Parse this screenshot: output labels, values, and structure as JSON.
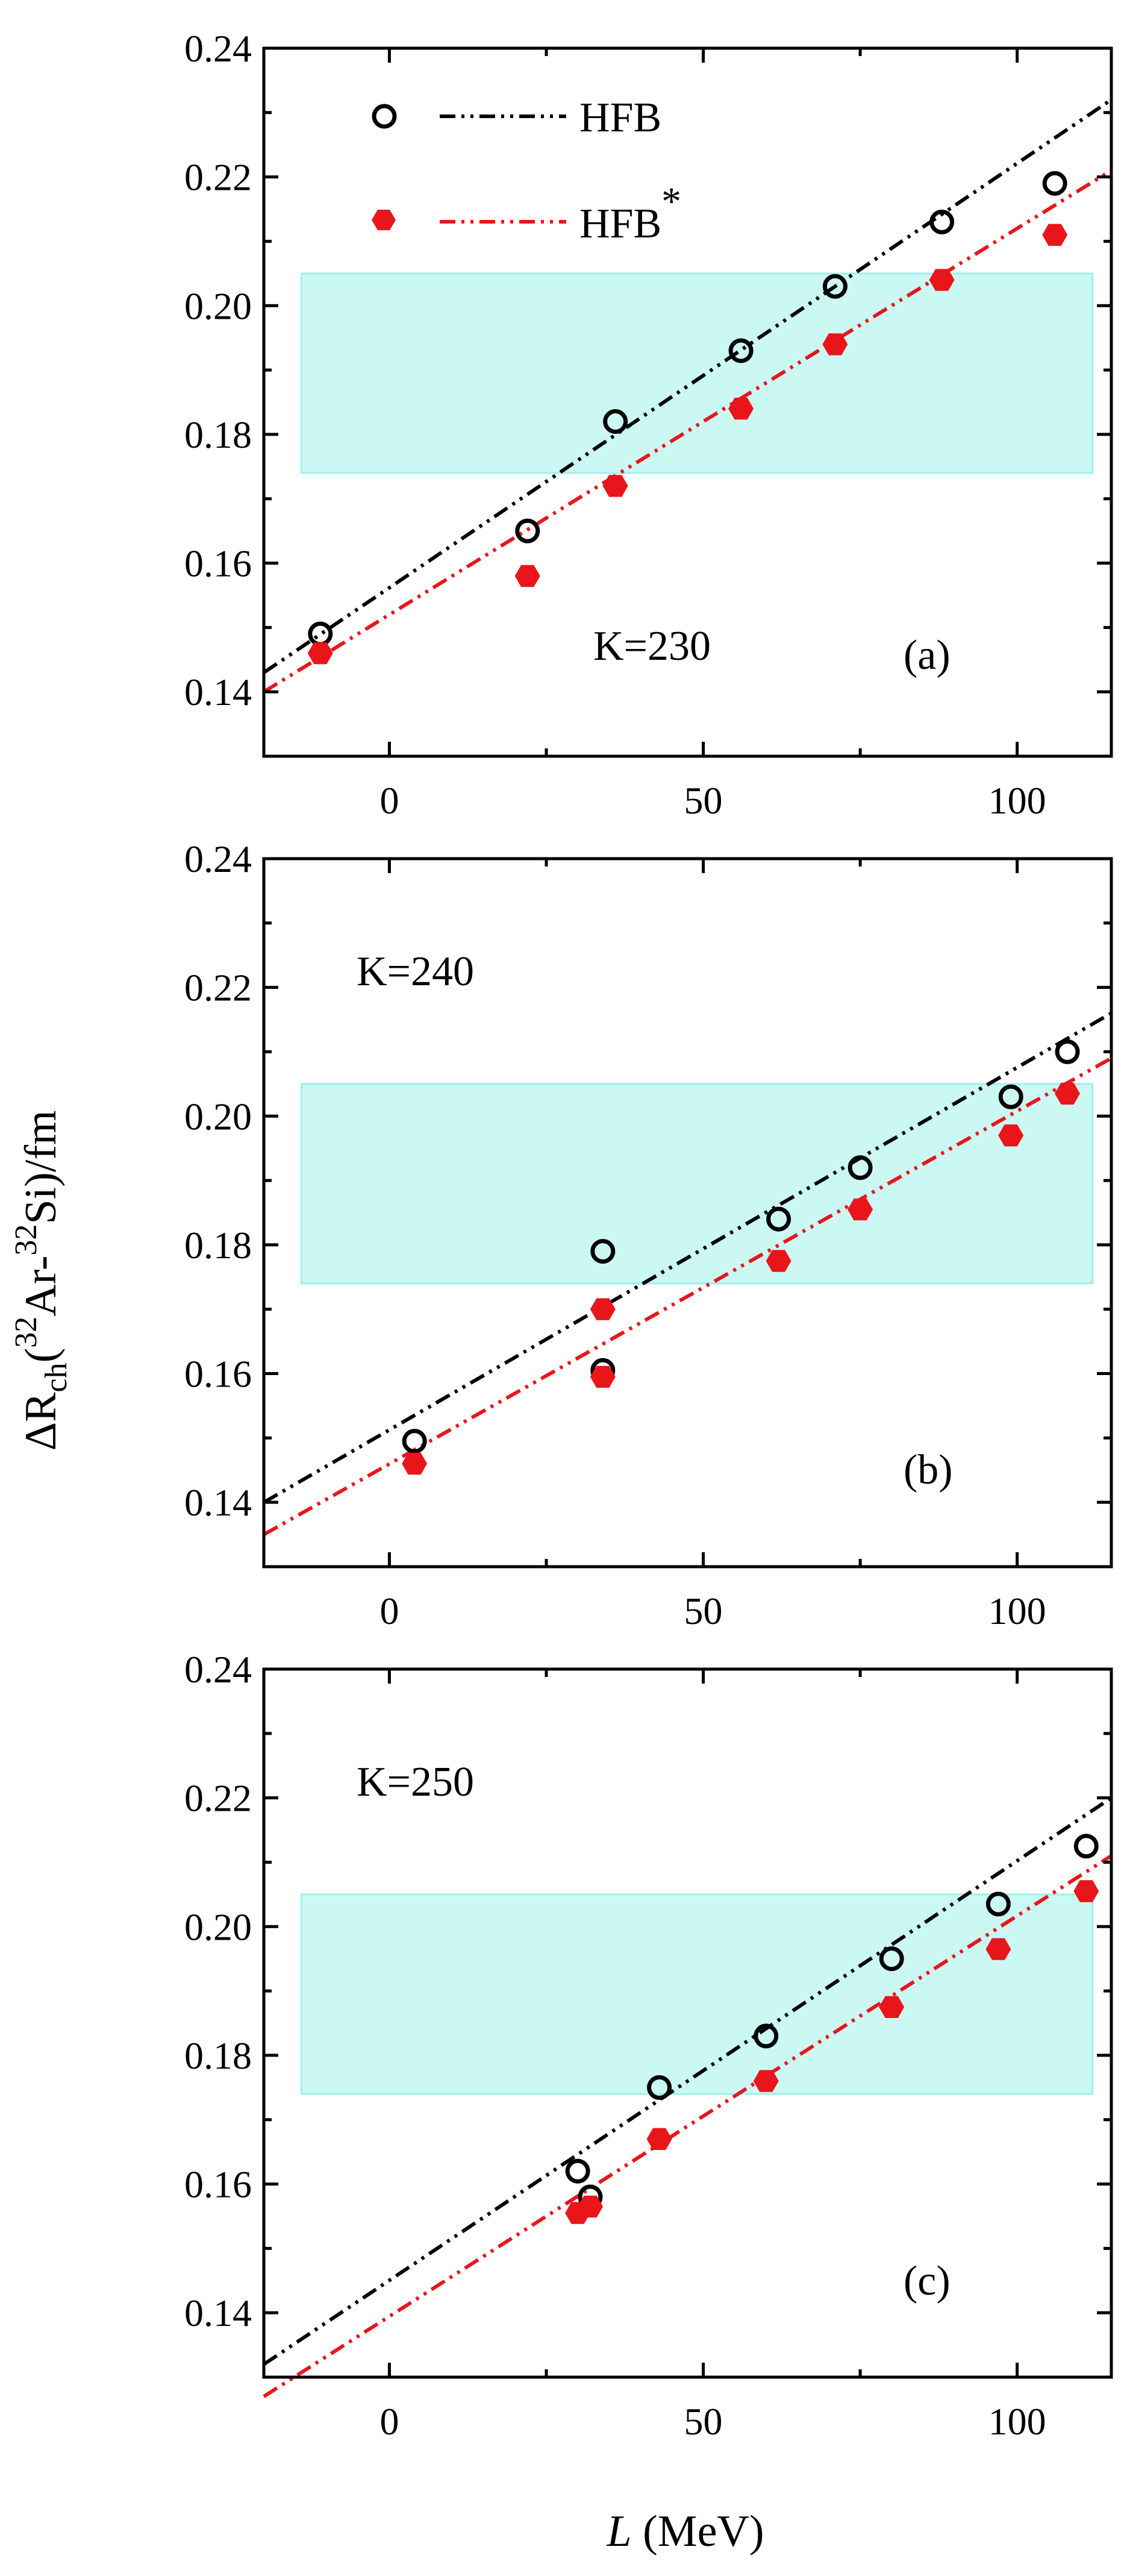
{
  "chart_data": [
    {
      "type": "scatter",
      "panel_label": "(a)",
      "annotation": "K=230",
      "xlim": [
        -20,
        115
      ],
      "ylim": [
        0.13,
        0.24
      ],
      "band": [
        0.174,
        0.205
      ],
      "band_color": "#ccf8f3",
      "legend": {
        "placement": "top-left",
        "entries": [
          {
            "text": "HFB",
            "marker": "open-circle",
            "color": "#000000"
          },
          {
            "text": "HFB",
            "superscript": "*",
            "marker": "filled-hexagon",
            "color": "#e8161b"
          }
        ]
      },
      "series": [
        {
          "name": "HFB",
          "color": "#000000",
          "marker": "open-circle",
          "x": [
            -11,
            22,
            36,
            56,
            71,
            88,
            106
          ],
          "y": [
            0.149,
            0.165,
            0.182,
            0.193,
            0.203,
            0.213,
            0.219
          ],
          "fit": {
            "x0": -20,
            "y0": 0.143,
            "x1": 115,
            "y1": 0.232
          }
        },
        {
          "name": "HFB*",
          "color": "#e8161b",
          "marker": "filled-hexagon",
          "x": [
            -11,
            22,
            36,
            56,
            71,
            88,
            106
          ],
          "y": [
            0.146,
            0.158,
            0.172,
            0.184,
            0.194,
            0.204,
            0.211
          ],
          "fit": {
            "x0": -20,
            "y0": 0.14,
            "x1": 115,
            "y1": 0.221
          }
        }
      ]
    },
    {
      "type": "scatter",
      "panel_label": "(b)",
      "annotation": "K=240",
      "xlim": [
        -20,
        115
      ],
      "ylim": [
        0.13,
        0.24
      ],
      "band": [
        0.174,
        0.205
      ],
      "band_color": "#ccf8f3",
      "series": [
        {
          "name": "HFB",
          "color": "#000000",
          "marker": "open-circle",
          "x": [
            4,
            34,
            34,
            62,
            75,
            99,
            108
          ],
          "y": [
            0.1495,
            0.179,
            0.1605,
            0.184,
            0.192,
            0.203,
            0.21
          ],
          "fit": {
            "x0": -20,
            "y0": 0.14,
            "x1": 115,
            "y1": 0.216
          }
        },
        {
          "name": "HFB*",
          "color": "#e8161b",
          "marker": "filled-hexagon",
          "x": [
            4,
            34,
            34,
            62,
            75,
            99,
            108
          ],
          "y": [
            0.146,
            0.17,
            0.1595,
            0.1775,
            0.1855,
            0.197,
            0.2035
          ],
          "fit": {
            "x0": -20,
            "y0": 0.135,
            "x1": 115,
            "y1": 0.209
          }
        }
      ]
    },
    {
      "type": "scatter",
      "panel_label": "(c)",
      "annotation": "K=250",
      "xlim": [
        -20,
        115
      ],
      "ylim": [
        0.13,
        0.24
      ],
      "band": [
        0.174,
        0.205
      ],
      "band_color": "#ccf8f3",
      "series": [
        {
          "name": "HFB",
          "color": "#000000",
          "marker": "open-circle",
          "x": [
            30,
            32,
            43,
            60,
            80,
            97,
            111
          ],
          "y": [
            0.162,
            0.158,
            0.175,
            0.183,
            0.195,
            0.2035,
            0.2125
          ],
          "fit": {
            "x0": -20,
            "y0": 0.132,
            "x1": 115,
            "y1": 0.22
          }
        },
        {
          "name": "HFB*",
          "color": "#e8161b",
          "marker": "filled-hexagon",
          "x": [
            30,
            32,
            43,
            60,
            80,
            97,
            111
          ],
          "y": [
            0.1555,
            0.1565,
            0.167,
            0.176,
            0.1875,
            0.1965,
            0.2055
          ],
          "fit": {
            "x0": -20,
            "y0": 0.127,
            "x1": 115,
            "y1": 0.211
          }
        }
      ]
    }
  ],
  "axes": {
    "x_ticks": [
      "0",
      "50",
      "100"
    ],
    "x_tick_values": [
      0,
      50,
      100
    ],
    "y_ticks": [
      "0.14",
      "0.16",
      "0.18",
      "0.20",
      "0.22",
      "0.24"
    ],
    "y_tick_values": [
      0.14,
      0.16,
      0.18,
      0.2,
      0.22,
      0.24
    ],
    "xlabel_italic": "L",
    "xlabel_rest": " (MeV)",
    "ylabel": {
      "delta": "ΔR",
      "sub": "ch",
      "open": "(",
      "mass1": "32",
      "elem1": "Ar-",
      "mass2": "32",
      "elem2": "Si)/fm"
    }
  }
}
